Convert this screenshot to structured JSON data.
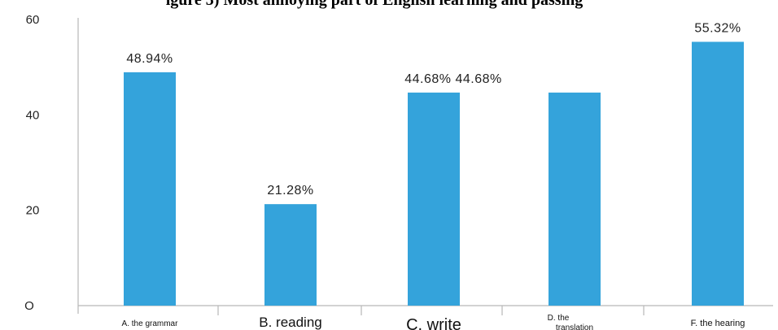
{
  "chart_data": {
    "type": "bar",
    "title": "igure 3) Most annoying part of English learning and passing",
    "categories": [
      "A. the grammar",
      "B. reading",
      "C. write",
      "D. the translation",
      "F. the hearing"
    ],
    "values": [
      48.94,
      21.28,
      44.68,
      44.68,
      55.32
    ],
    "data_labels": [
      "48.94%",
      "21.28%",
      "44.68% 44.68%",
      "",
      "55.32%"
    ],
    "yticks": [
      "O",
      "20",
      "40",
      "60"
    ],
    "ylim": [
      0,
      60
    ],
    "bar_color": "#34a3db",
    "grid": false
  }
}
